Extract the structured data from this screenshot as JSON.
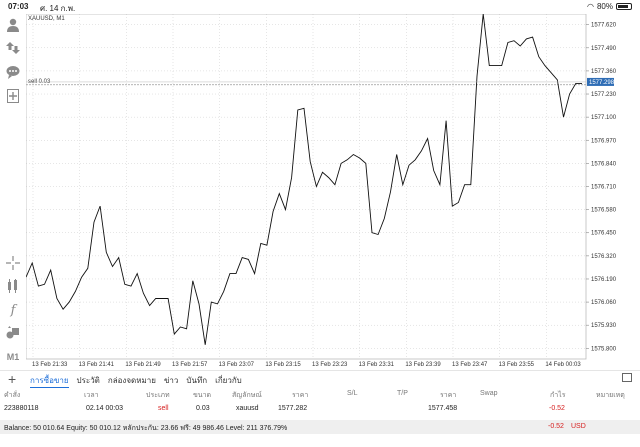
{
  "status_bar": {
    "time": "07:03",
    "date": "ศ. 14 ก.พ.",
    "battery": "80%",
    "battery_level": 0.8
  },
  "toolbar": {
    "timeframe": "M1"
  },
  "chart_data": {
    "type": "line",
    "title": "XAUUSD, M1",
    "order_label": "sell 0.03",
    "current_price_label": "1577.298",
    "colors": {
      "line": "#111111",
      "price_tag": "#2f6db5",
      "order_line": "#9a9a9a",
      "grid": "#cccccc"
    },
    "grid": true,
    "ylim": [
      1575.74,
      1577.68
    ],
    "y_ticks": [
      "1575.800",
      "1575.930",
      "1576.060",
      "1576.190",
      "1576.320",
      "1576.450",
      "1576.580",
      "1576.710",
      "1576.840",
      "1576.970",
      "1577.100",
      "1577.230",
      "1577.360",
      "1577.490",
      "1577.620"
    ],
    "x_labels": [
      "13 Feb 21:33",
      "13 Feb 21:41",
      "13 Feb 21:49",
      "13 Feb 21:57",
      "13 Feb 23:07",
      "13 Feb 23:15",
      "13 Feb 23:23",
      "13 Feb 23:31",
      "13 Feb 23:39",
      "13 Feb 23:47",
      "13 Feb 23:55",
      "14 Feb 00:03"
    ],
    "order_price": 1577.282,
    "current_price": 1577.298,
    "values": [
      1576.2,
      1576.28,
      1576.15,
      1576.16,
      1576.24,
      1576.08,
      1576.02,
      1576.06,
      1576.12,
      1576.2,
      1576.25,
      1576.51,
      1576.6,
      1576.34,
      1576.26,
      1576.31,
      1576.16,
      1576.15,
      1576.22,
      1576.11,
      1576.04,
      1576.08,
      1576.08,
      1576.08,
      1575.88,
      1575.92,
      1575.91,
      1576.18,
      1576.05,
      1575.82,
      1576.06,
      1576.05,
      1576.12,
      1576.22,
      1576.22,
      1576.31,
      1576.3,
      1576.22,
      1576.39,
      1576.38,
      1576.57,
      1576.67,
      1576.58,
      1576.76,
      1577.14,
      1577.15,
      1576.85,
      1576.71,
      1576.79,
      1576.76,
      1576.72,
      1576.84,
      1576.86,
      1576.89,
      1576.87,
      1576.84,
      1576.45,
      1576.44,
      1576.53,
      1576.68,
      1576.89,
      1576.72,
      1576.83,
      1576.86,
      1576.91,
      1576.98,
      1576.8,
      1576.72,
      1577.08,
      1576.6,
      1576.62,
      1576.72,
      1576.72,
      1577.33,
      1577.68,
      1577.39,
      1577.39,
      1577.39,
      1577.52,
      1577.53,
      1577.5,
      1577.54,
      1577.55,
      1577.44,
      1577.39,
      1577.35,
      1577.31,
      1577.1,
      1577.23,
      1577.29,
      1577.29
    ]
  },
  "tabs": [
    {
      "label": "การซื้อขาย",
      "active": true
    },
    {
      "label": "ประวัติ"
    },
    {
      "label": "กล่องจดหมาย"
    },
    {
      "label": "ข่าว"
    },
    {
      "label": "บันทึก"
    },
    {
      "label": "เกี่ยวกับ"
    }
  ],
  "table": {
    "headers": {
      "order": "คำสั่ง",
      "time": "เวลา",
      "type": "ประเภท",
      "volume": "ขนาด",
      "symbol": "สัญลักษณ์",
      "price": "ราคา",
      "sl": "S/L",
      "tp": "T/P",
      "price2": "ราคา",
      "swap": "Swap",
      "profit": "กำไร",
      "comment": "หมายเหตุ"
    },
    "row": {
      "order": "223880118",
      "time": "02.14 00:03",
      "type": "sell",
      "volume": "0.03",
      "symbol": "xauusd",
      "price": "1577.282",
      "price2": "1577.458",
      "profit": "-0.52"
    }
  },
  "balance": {
    "text": "Balance: 50 010.64 Equity: 50 010.12 หลักประกัน: 23.66 ฟรี: 49 986.46 Level: 211 376.79%",
    "total": "-0.52",
    "currency": "USD"
  }
}
